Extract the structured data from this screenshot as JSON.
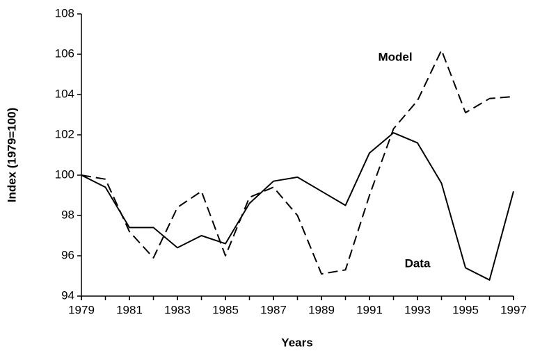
{
  "chart_data": {
    "type": "line",
    "x_label": "Years",
    "y_label": "Index (1979=100)",
    "x": [
      1979,
      1980,
      1981,
      1982,
      1983,
      1984,
      1985,
      1986,
      1987,
      1988,
      1989,
      1990,
      1991,
      1992,
      1993,
      1994,
      1995,
      1996,
      1997
    ],
    "series": [
      {
        "name": "Data",
        "color": "#000000",
        "dash": "solid",
        "values": [
          100,
          99.4,
          97.4,
          97.4,
          96.4,
          97.0,
          96.6,
          98.6,
          99.7,
          99.9,
          99.2,
          98.5,
          101.1,
          102.1,
          101.6,
          99.6,
          95.4,
          94.8,
          99.2
        ]
      },
      {
        "name": "Model",
        "color": "#000000",
        "dash": "dashed",
        "values": [
          100,
          99.8,
          97.2,
          95.9,
          98.4,
          99.2,
          96.0,
          98.9,
          99.4,
          98.0,
          95.1,
          95.3,
          99.0,
          102.3,
          103.7,
          106.2,
          103.1,
          103.8,
          103.9
        ]
      }
    ],
    "xlim": [
      1979,
      1997
    ],
    "xticks": [
      1979,
      1981,
      1983,
      1985,
      1987,
      1989,
      1991,
      1993,
      1995,
      1997
    ],
    "ylim": [
      94,
      108
    ],
    "yticks": [
      94,
      96,
      98,
      100,
      102,
      104,
      106,
      108
    ],
    "grid": false
  }
}
